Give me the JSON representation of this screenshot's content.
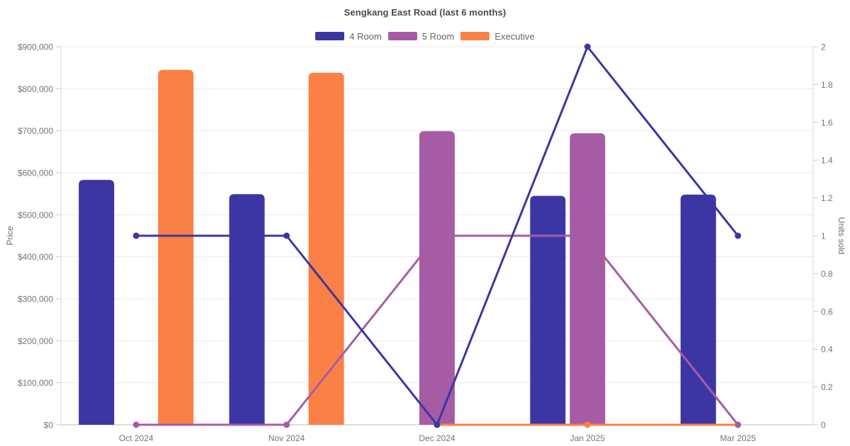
{
  "chart_data": {
    "type": "combo-bar-line",
    "title": "Sengkang East Road (last 6 months)",
    "categories": [
      "Oct 2024",
      "Nov 2024",
      "Dec 2024",
      "Jan 2025",
      "Mar 2025"
    ],
    "legend": {
      "position": "top",
      "entries": [
        {
          "label": "4 Room",
          "color": "#3C36A4"
        },
        {
          "label": "5 Room",
          "color": "#A55CA5"
        },
        {
          "label": "Executive",
          "color": "#FB8046"
        }
      ]
    },
    "bar_series": [
      {
        "name": "4 Room",
        "axis": "left",
        "color": "#3C36A4",
        "values": [
          583000,
          549000,
          null,
          545000,
          548000
        ]
      },
      {
        "name": "5 Room",
        "axis": "left",
        "color": "#A55CA5",
        "values": [
          null,
          null,
          699000,
          694000,
          null
        ]
      },
      {
        "name": "Executive",
        "axis": "left",
        "color": "#FB8046",
        "values": [
          845000,
          838000,
          null,
          null,
          null
        ]
      }
    ],
    "line_series": [
      {
        "name": "4 Room",
        "axis": "right",
        "color": "#3C36A4",
        "values": [
          1,
          1,
          0,
          2,
          1
        ]
      },
      {
        "name": "5 Room",
        "axis": "right",
        "color": "#A55CA5",
        "values": [
          0,
          0,
          1,
          1,
          0
        ]
      },
      {
        "name": "Executive",
        "axis": "right",
        "color": "#FB8046",
        "values": [
          null,
          null,
          0,
          0,
          0
        ]
      }
    ],
    "left_axis": {
      "label": "Price",
      "min": 0,
      "max": 900000,
      "tick_step": 100000,
      "tick_labels": [
        "$0",
        "$100,000",
        "$200,000",
        "$300,000",
        "$400,000",
        "$500,000",
        "$600,000",
        "$700,000",
        "$800,000",
        "$900,000"
      ]
    },
    "right_axis": {
      "label": "Units sold",
      "min": 0,
      "max": 2,
      "tick_step": 0.2,
      "tick_labels": [
        "0",
        "0.2",
        "0.4",
        "0.6",
        "0.8",
        "1",
        "1.2",
        "1.4",
        "1.6",
        "1.8",
        "2"
      ]
    },
    "grid": {
      "horizontal": true,
      "vertical": false,
      "color": "#e9e9e9"
    },
    "styles": {
      "tick_text_color": "#757575",
      "axis_line_color": "#d3d3d3",
      "border_color": "#dadada",
      "tick_mark_color": "#cccccc",
      "background": "#ffffff"
    }
  }
}
